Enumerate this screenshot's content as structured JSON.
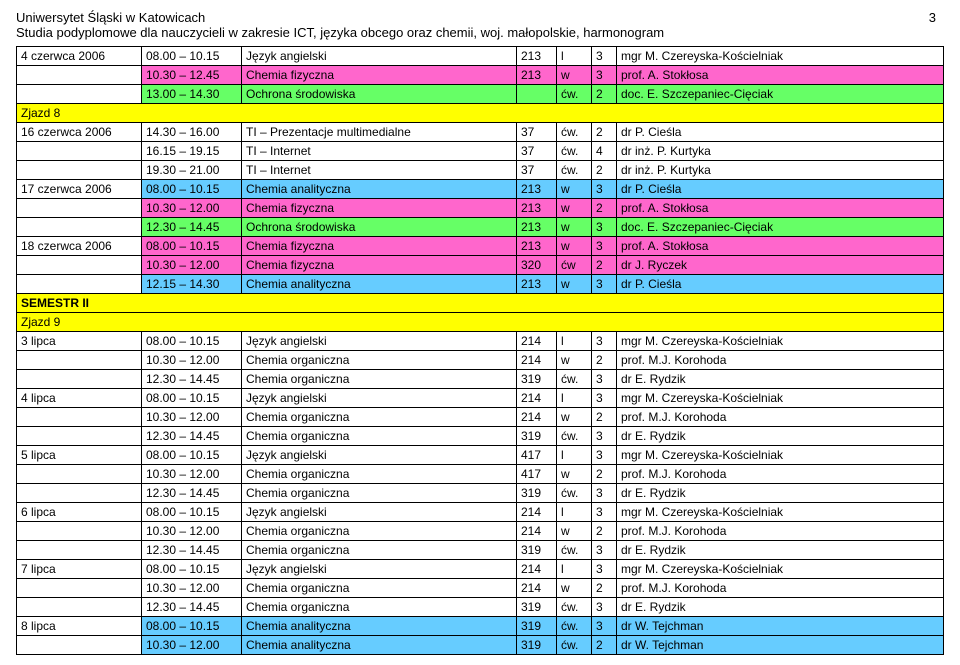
{
  "header": {
    "university": "Uniwersytet Śląski w Katowicach",
    "subtitle": "Studia podyplomowe dla nauczycieli w zakresie ICT, języka obcego oraz chemii, woj. małopolskie, harmonogram",
    "page": "3"
  },
  "colors": {
    "yellow": "#ffff00",
    "pink": "#ff66cc",
    "green": "#66ff66",
    "cyan": "#66ccff"
  },
  "rows": [
    {
      "kind": "data",
      "date": "4 czerwca 2006",
      "time": "08.00 – 10.15",
      "subj": "Język angielski",
      "room": "213",
      "type": "l",
      "hrs": "3",
      "inst": "mgr M. Czereyska-Kościelniak",
      "bg": null
    },
    {
      "kind": "data",
      "date": "",
      "time": "10.30 – 12.45",
      "subj": "Chemia fizyczna",
      "room": "213",
      "type": "w",
      "hrs": "3",
      "inst": "prof. A. Stokłosa",
      "bg": "pink"
    },
    {
      "kind": "data",
      "date": "",
      "time": "13.00 – 14.30",
      "subj": "Ochrona środowiska",
      "room": "",
      "type": "ćw.",
      "hrs": "2",
      "inst": "doc. E. Szczepaniec-Cięciak",
      "bg": "green"
    },
    {
      "kind": "zjazd",
      "label": "Zjazd 8"
    },
    {
      "kind": "data",
      "date": "16 czerwca 2006",
      "time": "14.30 – 16.00",
      "subj": "TI – Prezentacje multimedialne",
      "room": "37",
      "type": "ćw.",
      "hrs": "2",
      "inst": "dr P. Cieśla",
      "bg": null
    },
    {
      "kind": "data",
      "date": "",
      "time": "16.15 – 19.15",
      "subj": "TI – Internet",
      "room": "37",
      "type": "ćw.",
      "hrs": "4",
      "inst": "dr inż. P. Kurtyka",
      "bg": null
    },
    {
      "kind": "data",
      "date": "",
      "time": "19.30 – 21.00",
      "subj": "TI – Internet",
      "room": "37",
      "type": "ćw.",
      "hrs": "2",
      "inst": "dr inż. P. Kurtyka",
      "bg": null
    },
    {
      "kind": "data",
      "date": "17 czerwca 2006",
      "time": "08.00 – 10.15",
      "subj": "Chemia analityczna",
      "room": "213",
      "type": "w",
      "hrs": "3",
      "inst": "dr P. Cieśla",
      "bg": "cyan"
    },
    {
      "kind": "data",
      "date": "",
      "time": "10.30 – 12.00",
      "subj": "Chemia fizyczna",
      "room": "213",
      "type": "w",
      "hrs": "2",
      "inst": "prof. A. Stokłosa",
      "bg": "pink"
    },
    {
      "kind": "data",
      "date": "",
      "time": "12.30 – 14.45",
      "subj": "Ochrona środowiska",
      "room": "213",
      "type": "w",
      "hrs": "3",
      "inst": "doc. E. Szczepaniec-Cięciak",
      "bg": "green"
    },
    {
      "kind": "data",
      "date": "18 czerwca 2006",
      "time": "08.00 – 10.15",
      "subj": "Chemia fizyczna",
      "room": "213",
      "type": "w",
      "hrs": "3",
      "inst": "prof. A. Stokłosa",
      "bg": "pink"
    },
    {
      "kind": "data",
      "date": "",
      "time": "10.30 – 12.00",
      "subj": "Chemia fizyczna",
      "room": "320",
      "type": "ćw",
      "hrs": "2",
      "inst": "dr J. Ryczek",
      "bg": "pink"
    },
    {
      "kind": "data",
      "date": "",
      "time": "12.15 – 14.30",
      "subj": "Chemia analityczna",
      "room": "213",
      "type": "w",
      "hrs": "3",
      "inst": "dr P. Cieśla",
      "bg": "cyan"
    },
    {
      "kind": "section",
      "label": "SEMESTR II"
    },
    {
      "kind": "zjazd",
      "label": "Zjazd 9"
    },
    {
      "kind": "data",
      "date": "3 lipca",
      "time": "08.00 – 10.15",
      "subj": "Język angielski",
      "room": "214",
      "type": "l",
      "hrs": "3",
      "inst": "mgr M. Czereyska-Kościelniak",
      "bg": null
    },
    {
      "kind": "data",
      "date": "",
      "time": "10.30 – 12.00",
      "subj": "Chemia organiczna",
      "room": "214",
      "type": "w",
      "hrs": "2",
      "inst": "prof. M.J. Korohoda",
      "bg": null
    },
    {
      "kind": "data",
      "date": "",
      "time": "12.30 – 14.45",
      "subj": "Chemia organiczna",
      "room": "319",
      "type": "ćw.",
      "hrs": "3",
      "inst": "dr E. Rydzik",
      "bg": null
    },
    {
      "kind": "data",
      "date": "4 lipca",
      "time": "08.00 – 10.15",
      "subj": "Język angielski",
      "room": "214",
      "type": "l",
      "hrs": "3",
      "inst": "mgr M. Czereyska-Kościelniak",
      "bg": null
    },
    {
      "kind": "data",
      "date": "",
      "time": "10.30 – 12.00",
      "subj": "Chemia organiczna",
      "room": "214",
      "type": "w",
      "hrs": "2",
      "inst": "prof. M.J. Korohoda",
      "bg": null
    },
    {
      "kind": "data",
      "date": "",
      "time": "12.30 – 14.45",
      "subj": "Chemia organiczna",
      "room": "319",
      "type": "ćw.",
      "hrs": "3",
      "inst": "dr E. Rydzik",
      "bg": null
    },
    {
      "kind": "data",
      "date": "5 lipca",
      "time": "08.00 – 10.15",
      "subj": "Język angielski",
      "room": "417",
      "type": "l",
      "hrs": "3",
      "inst": "mgr M. Czereyska-Kościelniak",
      "bg": null
    },
    {
      "kind": "data",
      "date": "",
      "time": "10.30 – 12.00",
      "subj": "Chemia organiczna",
      "room": "417",
      "type": "w",
      "hrs": "2",
      "inst": "prof. M.J. Korohoda",
      "bg": null
    },
    {
      "kind": "data",
      "date": "",
      "time": "12.30 – 14.45",
      "subj": "Chemia organiczna",
      "room": "319",
      "type": "ćw.",
      "hrs": "3",
      "inst": "dr E. Rydzik",
      "bg": null
    },
    {
      "kind": "data",
      "date": "6 lipca",
      "time": "08.00 – 10.15",
      "subj": "Język angielski",
      "room": "214",
      "type": "l",
      "hrs": "3",
      "inst": "mgr M. Czereyska-Kościelniak",
      "bg": null
    },
    {
      "kind": "data",
      "date": "",
      "time": "10.30 – 12.00",
      "subj": "Chemia organiczna",
      "room": "214",
      "type": "w",
      "hrs": "2",
      "inst": "prof. M.J. Korohoda",
      "bg": null
    },
    {
      "kind": "data",
      "date": "",
      "time": "12.30 – 14.45",
      "subj": "Chemia organiczna",
      "room": "319",
      "type": "ćw.",
      "hrs": "3",
      "inst": "dr E. Rydzik",
      "bg": null
    },
    {
      "kind": "data",
      "date": "7 lipca",
      "time": "08.00 – 10.15",
      "subj": "Język angielski",
      "room": "214",
      "type": "l",
      "hrs": "3",
      "inst": "mgr M. Czereyska-Kościelniak",
      "bg": null
    },
    {
      "kind": "data",
      "date": "",
      "time": "10.30 – 12.00",
      "subj": "Chemia organiczna",
      "room": "214",
      "type": "w",
      "hrs": "2",
      "inst": "prof. M.J. Korohoda",
      "bg": null
    },
    {
      "kind": "data",
      "date": "",
      "time": "12.30 – 14.45",
      "subj": "Chemia organiczna",
      "room": "319",
      "type": "ćw.",
      "hrs": "3",
      "inst": "dr E. Rydzik",
      "bg": null
    },
    {
      "kind": "data",
      "date": "8 lipca",
      "time": "08.00 – 10.15",
      "subj": "Chemia analityczna",
      "room": "319",
      "type": "ćw.",
      "hrs": "3",
      "inst": "dr W. Tejchman",
      "bg": "cyan"
    },
    {
      "kind": "data",
      "date": "",
      "time": "10.30 – 12.00",
      "subj": "Chemia analityczna",
      "room": "319",
      "type": "ćw.",
      "hrs": "2",
      "inst": "dr W. Tejchman",
      "bg": "cyan"
    }
  ]
}
